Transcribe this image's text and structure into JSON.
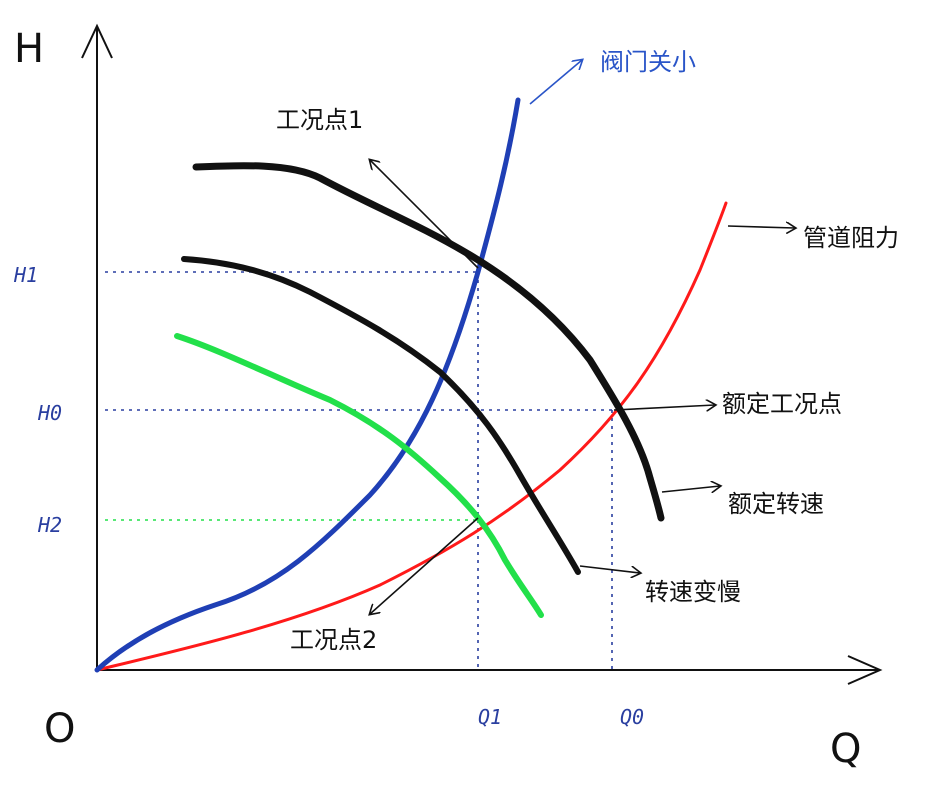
{
  "axes": {
    "y_label": "H",
    "x_label": "Q",
    "origin_label": "O"
  },
  "ticks": {
    "h1": "H1",
    "h0": "H0",
    "h2": "H2",
    "q1": "Q1",
    "q0": "Q0"
  },
  "annotations": {
    "valve_close": "阀门关小",
    "operating_point_1": "工况点1",
    "pipeline_resistance": "管道阻力",
    "rated_operating_point": "额定工况点",
    "rated_speed": "额定转速",
    "slower_speed": "转速变慢",
    "operating_point_2": "工况点2"
  },
  "colors": {
    "axis": "#111111",
    "rated_speed_curve": "#111111",
    "slower_speed_curve": "#111111",
    "slow_curve": "#22e04a",
    "valve_curve": "#1f3fb5",
    "resistance_curve": "#ff1a1a",
    "guide_blue": "#2a3fa0",
    "guide_green": "#22e04a"
  }
}
